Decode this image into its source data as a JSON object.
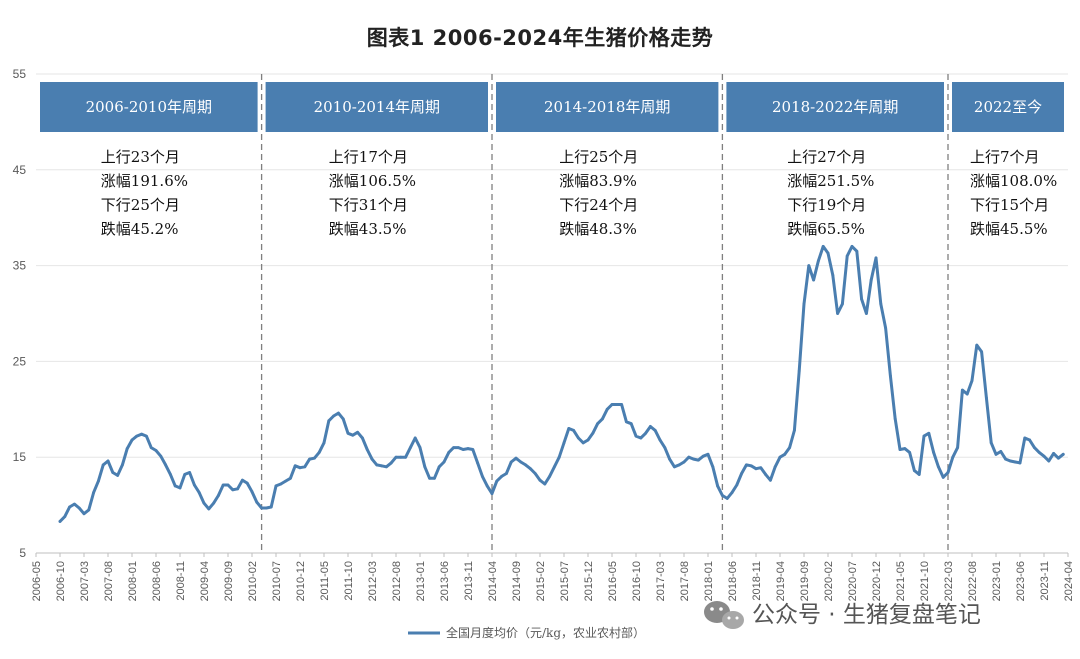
{
  "chart_data": {
    "type": "line",
    "title": "图表1 2006-2024年生猪价格走势",
    "ylim": [
      5,
      55
    ],
    "yticks": [
      5,
      15,
      25,
      35,
      45,
      55
    ],
    "grid": true,
    "legend_position": "bottom",
    "x_tick_labels": [
      "2006-05",
      "2006-10",
      "2007-03",
      "2007-08",
      "2008-01",
      "2008-06",
      "2008-11",
      "2009-04",
      "2009-09",
      "2010-02",
      "2010-07",
      "2010-12",
      "2011-05",
      "2011-10",
      "2012-03",
      "2012-08",
      "2013-01",
      "2013-06",
      "2013-11",
      "2014-04",
      "2014-09",
      "2015-02",
      "2015-07",
      "2015-12",
      "2016-05",
      "2016-10",
      "2017-03",
      "2017-08",
      "2018-01",
      "2018-06",
      "2018-11",
      "2019-04",
      "2019-09",
      "2020-02",
      "2020-07",
      "2020-12",
      "2021-05",
      "2021-10",
      "2022-03",
      "2022-08",
      "2023-01",
      "2023-06",
      "2023-11",
      "2024-04"
    ],
    "series": [
      {
        "name": "全国月度均价（元/kg，农业农村部）",
        "color": "#4a7eb0",
        "points": [
          [
            "2006-10",
            8.3
          ],
          [
            "2006-11",
            8.8
          ],
          [
            "2006-12",
            9.8
          ],
          [
            "2007-01",
            10.1
          ],
          [
            "2007-02",
            9.7
          ],
          [
            "2007-03",
            9.1
          ],
          [
            "2007-04",
            9.5
          ],
          [
            "2007-05",
            11.3
          ],
          [
            "2007-06",
            12.5
          ],
          [
            "2007-07",
            14.2
          ],
          [
            "2007-08",
            14.6
          ],
          [
            "2007-09",
            13.4
          ],
          [
            "2007-10",
            13.1
          ],
          [
            "2007-11",
            14.2
          ],
          [
            "2007-12",
            15.9
          ],
          [
            "2008-01",
            16.8
          ],
          [
            "2008-02",
            17.2
          ],
          [
            "2008-03",
            17.4
          ],
          [
            "2008-04",
            17.2
          ],
          [
            "2008-05",
            16.0
          ],
          [
            "2008-06",
            15.7
          ],
          [
            "2008-07",
            15.1
          ],
          [
            "2008-08",
            14.2
          ],
          [
            "2008-09",
            13.2
          ],
          [
            "2008-10",
            12.0
          ],
          [
            "2008-11",
            11.8
          ],
          [
            "2008-12",
            13.2
          ],
          [
            "2009-01",
            13.4
          ],
          [
            "2009-02",
            12.1
          ],
          [
            "2009-03",
            11.3
          ],
          [
            "2009-04",
            10.2
          ],
          [
            "2009-05",
            9.6
          ],
          [
            "2009-06",
            10.2
          ],
          [
            "2009-07",
            11.0
          ],
          [
            "2009-08",
            12.1
          ],
          [
            "2009-09",
            12.1
          ],
          [
            "2009-10",
            11.6
          ],
          [
            "2009-11",
            11.7
          ],
          [
            "2009-12",
            12.6
          ],
          [
            "2010-01",
            12.3
          ],
          [
            "2010-02",
            11.4
          ],
          [
            "2010-03",
            10.3
          ],
          [
            "2010-04",
            9.7
          ],
          [
            "2010-05",
            9.7
          ],
          [
            "2010-06",
            9.8
          ],
          [
            "2010-07",
            12.0
          ],
          [
            "2010-08",
            12.2
          ],
          [
            "2010-09",
            12.5
          ],
          [
            "2010-10",
            12.8
          ],
          [
            "2010-11",
            14.1
          ],
          [
            "2010-12",
            13.9
          ],
          [
            "2011-01",
            14.0
          ],
          [
            "2011-02",
            14.8
          ],
          [
            "2011-03",
            14.9
          ],
          [
            "2011-04",
            15.5
          ],
          [
            "2011-05",
            16.5
          ],
          [
            "2011-06",
            18.8
          ],
          [
            "2011-07",
            19.3
          ],
          [
            "2011-08",
            19.6
          ],
          [
            "2011-09",
            19.0
          ],
          [
            "2011-10",
            17.5
          ],
          [
            "2011-11",
            17.3
          ],
          [
            "2011-12",
            17.6
          ],
          [
            "2012-01",
            17.0
          ],
          [
            "2012-02",
            15.8
          ],
          [
            "2012-03",
            14.8
          ],
          [
            "2012-04",
            14.2
          ],
          [
            "2012-05",
            14.1
          ],
          [
            "2012-06",
            14.0
          ],
          [
            "2012-07",
            14.4
          ],
          [
            "2012-08",
            15.0
          ],
          [
            "2012-09",
            15.0
          ],
          [
            "2012-10",
            15.0
          ],
          [
            "2012-11",
            16.0
          ],
          [
            "2012-12",
            17.0
          ],
          [
            "2013-01",
            16.0
          ],
          [
            "2013-02",
            14.0
          ],
          [
            "2013-03",
            12.8
          ],
          [
            "2013-04",
            12.8
          ],
          [
            "2013-05",
            14.0
          ],
          [
            "2013-06",
            14.5
          ],
          [
            "2013-07",
            15.5
          ],
          [
            "2013-08",
            16.0
          ],
          [
            "2013-09",
            16.0
          ],
          [
            "2013-10",
            15.8
          ],
          [
            "2013-11",
            15.9
          ],
          [
            "2013-12",
            15.8
          ],
          [
            "2014-01",
            14.4
          ],
          [
            "2014-02",
            13.0
          ],
          [
            "2014-03",
            12.0
          ],
          [
            "2014-04",
            11.2
          ],
          [
            "2014-05",
            12.5
          ],
          [
            "2014-06",
            13.0
          ],
          [
            "2014-07",
            13.3
          ],
          [
            "2014-08",
            14.5
          ],
          [
            "2014-09",
            14.9
          ],
          [
            "2014-10",
            14.5
          ],
          [
            "2014-11",
            14.2
          ],
          [
            "2014-12",
            13.8
          ],
          [
            "2015-01",
            13.3
          ],
          [
            "2015-02",
            12.6
          ],
          [
            "2015-03",
            12.2
          ],
          [
            "2015-04",
            13.0
          ],
          [
            "2015-05",
            14.0
          ],
          [
            "2015-06",
            15.0
          ],
          [
            "2015-07",
            16.5
          ],
          [
            "2015-08",
            18.0
          ],
          [
            "2015-09",
            17.8
          ],
          [
            "2015-10",
            17.0
          ],
          [
            "2015-11",
            16.5
          ],
          [
            "2015-12",
            16.8
          ],
          [
            "2016-01",
            17.5
          ],
          [
            "2016-02",
            18.5
          ],
          [
            "2016-03",
            19.0
          ],
          [
            "2016-04",
            20.0
          ],
          [
            "2016-05",
            20.5
          ],
          [
            "2016-06",
            20.5
          ],
          [
            "2016-07",
            20.5
          ],
          [
            "2016-08",
            18.7
          ],
          [
            "2016-09",
            18.5
          ],
          [
            "2016-10",
            17.2
          ],
          [
            "2016-11",
            17.0
          ],
          [
            "2016-12",
            17.5
          ],
          [
            "2017-01",
            18.2
          ],
          [
            "2017-02",
            17.8
          ],
          [
            "2017-03",
            16.8
          ],
          [
            "2017-04",
            16.0
          ],
          [
            "2017-05",
            14.8
          ],
          [
            "2017-06",
            14.0
          ],
          [
            "2017-07",
            14.2
          ],
          [
            "2017-08",
            14.5
          ],
          [
            "2017-09",
            15.0
          ],
          [
            "2017-10",
            14.8
          ],
          [
            "2017-11",
            14.7
          ],
          [
            "2017-12",
            15.1
          ],
          [
            "2018-01",
            15.3
          ],
          [
            "2018-02",
            14.0
          ],
          [
            "2018-03",
            12.0
          ],
          [
            "2018-04",
            11.0
          ],
          [
            "2018-05",
            10.7
          ],
          [
            "2018-06",
            11.3
          ],
          [
            "2018-07",
            12.1
          ],
          [
            "2018-08",
            13.3
          ],
          [
            "2018-09",
            14.2
          ],
          [
            "2018-10",
            14.1
          ],
          [
            "2018-11",
            13.8
          ],
          [
            "2018-12",
            13.9
          ],
          [
            "2019-01",
            13.2
          ],
          [
            "2019-02",
            12.6
          ],
          [
            "2019-03",
            14.0
          ],
          [
            "2019-04",
            15.0
          ],
          [
            "2019-05",
            15.3
          ],
          [
            "2019-06",
            16.0
          ],
          [
            "2019-07",
            17.8
          ],
          [
            "2019-08",
            24.0
          ],
          [
            "2019-09",
            31.0
          ],
          [
            "2019-10",
            35.0
          ],
          [
            "2019-11",
            33.5
          ],
          [
            "2019-12",
            35.5
          ],
          [
            "2020-01",
            37.0
          ],
          [
            "2020-02",
            36.3
          ],
          [
            "2020-03",
            34.0
          ],
          [
            "2020-04",
            30.0
          ],
          [
            "2020-05",
            31.0
          ],
          [
            "2020-06",
            36.0
          ],
          [
            "2020-07",
            37.0
          ],
          [
            "2020-08",
            36.5
          ],
          [
            "2020-09",
            31.5
          ],
          [
            "2020-10",
            30.0
          ],
          [
            "2020-11",
            33.5
          ],
          [
            "2020-12",
            35.8
          ],
          [
            "2021-01",
            31.0
          ],
          [
            "2021-02",
            28.5
          ],
          [
            "2021-03",
            23.5
          ],
          [
            "2021-04",
            19.0
          ],
          [
            "2021-05",
            15.8
          ],
          [
            "2021-06",
            15.9
          ],
          [
            "2021-07",
            15.5
          ],
          [
            "2021-08",
            13.6
          ],
          [
            "2021-09",
            13.2
          ],
          [
            "2021-10",
            17.2
          ],
          [
            "2021-11",
            17.5
          ],
          [
            "2021-12",
            15.5
          ],
          [
            "2022-01",
            14.0
          ],
          [
            "2022-02",
            12.9
          ],
          [
            "2022-03",
            13.4
          ],
          [
            "2022-04",
            15.0
          ],
          [
            "2022-05",
            16.0
          ],
          [
            "2022-06",
            22.0
          ],
          [
            "2022-07",
            21.6
          ],
          [
            "2022-08",
            23.0
          ],
          [
            "2022-09",
            26.7
          ],
          [
            "2022-10",
            26.0
          ],
          [
            "2022-11",
            21.2
          ],
          [
            "2022-12",
            16.5
          ],
          [
            "2023-01",
            15.3
          ],
          [
            "2023-02",
            15.6
          ],
          [
            "2023-03",
            14.8
          ],
          [
            "2023-04",
            14.6
          ],
          [
            "2023-05",
            14.5
          ],
          [
            "2023-06",
            14.4
          ],
          [
            "2023-07",
            17.0
          ],
          [
            "2023-08",
            16.8
          ],
          [
            "2023-09",
            16.0
          ],
          [
            "2023-10",
            15.5
          ],
          [
            "2023-11",
            15.1
          ],
          [
            "2023-12",
            14.6
          ],
          [
            "2024-01",
            15.4
          ],
          [
            "2024-02",
            14.9
          ],
          [
            "2024-03",
            15.3
          ]
        ]
      }
    ],
    "periods": [
      {
        "label": "2006-2010年周期",
        "up": "上行23个月",
        "up_pct": "涨幅191.6%",
        "down": "下行25个月",
        "down_pct": "跌幅45.2%"
      },
      {
        "label": "2010-2014年周期",
        "up": "上行17个月",
        "up_pct": "涨幅106.5%",
        "down": "下行31个月",
        "down_pct": "跌幅43.5%"
      },
      {
        "label": "2014-2018年周期",
        "up": "上行25个月",
        "up_pct": "涨幅83.9%",
        "down": "下行24个月",
        "down_pct": "跌幅48.3%"
      },
      {
        "label": "2018-2022年周期",
        "up": "上行27个月",
        "up_pct": "涨幅251.5%",
        "down": "下行19个月",
        "down_pct": "跌幅65.5%"
      },
      {
        "label": "2022至今",
        "up": "上行7个月",
        "up_pct": "涨幅108.0%",
        "down": "下行15个月",
        "down_pct": "跌幅45.5%"
      }
    ],
    "period_dividers": [
      "2010-04",
      "2014-04",
      "2018-04",
      "2022-03"
    ],
    "colors": {
      "box": "#4a7eb0",
      "line": "#4a7eb0",
      "grid": "#e6e6e6",
      "divider": "#7f7f7f"
    }
  },
  "watermark": {
    "text": "公众号 · 生猪复盘笔记",
    "icon": "wechat-icon"
  }
}
